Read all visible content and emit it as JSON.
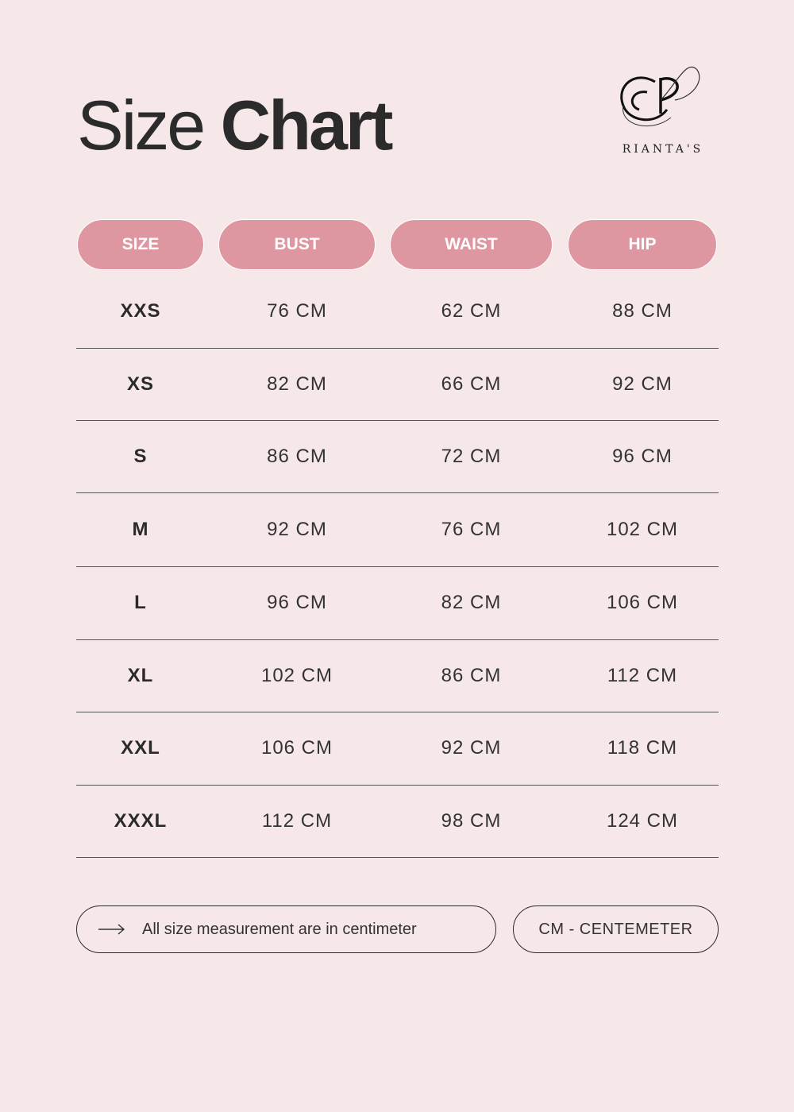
{
  "header": {
    "title_light": "Size",
    "title_bold": "Chart"
  },
  "brand": {
    "name": "RIANTA'S",
    "monogram": "RP",
    "logo_icon": "rp-monogram-logo"
  },
  "colors": {
    "background": "#f6e8e8",
    "header_pill": "#de97a1",
    "text": "#2b2b2b"
  },
  "table": {
    "columns": [
      "SIZE",
      "BUST",
      "WAIST",
      "HIP"
    ],
    "rows": [
      [
        "XXS",
        "76 CM",
        "62 CM",
        "88 CM"
      ],
      [
        "XS",
        "82 CM",
        "66 CM",
        "92 CM"
      ],
      [
        "S",
        "86 CM",
        "72 CM",
        "96 CM"
      ],
      [
        "M",
        "92 CM",
        "76 CM",
        "102 CM"
      ],
      [
        "L",
        "96 CM",
        "82 CM",
        "106 CM"
      ],
      [
        "XL",
        "102 CM",
        "86 CM",
        "112 CM"
      ],
      [
        "XXL",
        "106 CM",
        "92 CM",
        "118 CM"
      ],
      [
        "XXXL",
        "112 CM",
        "98 CM",
        "124 CM"
      ]
    ]
  },
  "footer": {
    "note_icon": "arrow-right-icon",
    "note": "All size measurement are in centimeter",
    "unit": "CM - CENTEMETER"
  }
}
